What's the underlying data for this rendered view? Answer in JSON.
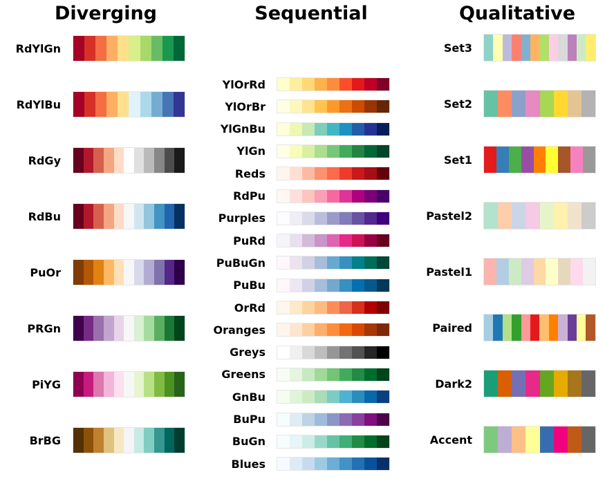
{
  "titles": {
    "diverging": "Diverging",
    "sequential": "Sequential",
    "qualitative": "Qualitative"
  },
  "diverging": [
    {
      "name": "RdYlGn",
      "colors": [
        "#a50026",
        "#d73027",
        "#f46d43",
        "#fdae61",
        "#fee08b",
        "#d9ef8b",
        "#a6d96a",
        "#66bd63",
        "#1a9850",
        "#006837"
      ]
    },
    {
      "name": "RdYlBu",
      "colors": [
        "#a50026",
        "#d73027",
        "#f46d43",
        "#fdae61",
        "#fee090",
        "#e0f3f8",
        "#abd9e9",
        "#74add1",
        "#4575b4",
        "#313695"
      ]
    },
    {
      "name": "RdGy",
      "colors": [
        "#67001f",
        "#b2182b",
        "#d6604d",
        "#f4a582",
        "#fddbc7",
        "#ffffff",
        "#e0e0e0",
        "#bababa",
        "#878787",
        "#4d4d4d",
        "#1a1a1a"
      ]
    },
    {
      "name": "RdBu",
      "colors": [
        "#67001f",
        "#b2182b",
        "#d6604d",
        "#f4a582",
        "#fddbc7",
        "#f7f7f7",
        "#d1e5f0",
        "#92c5de",
        "#4393c3",
        "#2166ac",
        "#053061"
      ]
    },
    {
      "name": "PuOr",
      "colors": [
        "#7f3b08",
        "#b35806",
        "#e08214",
        "#fdb863",
        "#fee0b6",
        "#f7f7f7",
        "#d8daeb",
        "#b2abd2",
        "#8073ac",
        "#542788",
        "#2d004b"
      ]
    },
    {
      "name": "PRGn",
      "colors": [
        "#40004b",
        "#762a83",
        "#9970ab",
        "#c2a5cf",
        "#e7d4e8",
        "#f7f7f7",
        "#d9f0d3",
        "#a6dba0",
        "#5aae61",
        "#1b7837",
        "#00441b"
      ]
    },
    {
      "name": "PiYG",
      "colors": [
        "#8e0152",
        "#c51b7d",
        "#de77ae",
        "#f1b6da",
        "#fde0ef",
        "#f7f7f7",
        "#e6f5d0",
        "#b8e186",
        "#7fbc41",
        "#4d9221",
        "#276419"
      ]
    },
    {
      "name": "BrBG",
      "colors": [
        "#543005",
        "#8c510a",
        "#bf812d",
        "#dfc27d",
        "#f6e8c3",
        "#f5f5f5",
        "#c7eae5",
        "#80cdc1",
        "#35978f",
        "#01665e",
        "#003c30"
      ]
    }
  ],
  "sequential": [
    {
      "name": "YlOrRd",
      "colors": [
        "#ffffcc",
        "#ffeda0",
        "#fed976",
        "#feb24c",
        "#fd8d3c",
        "#fc4e2a",
        "#e31a1c",
        "#bd0026",
        "#800026"
      ]
    },
    {
      "name": "YlOrBr",
      "colors": [
        "#ffffe5",
        "#fff7bc",
        "#fee391",
        "#fec44f",
        "#fe9929",
        "#ec7014",
        "#cc4c02",
        "#993404",
        "#662506"
      ]
    },
    {
      "name": "YlGnBu",
      "colors": [
        "#ffffd9",
        "#edf8b1",
        "#c7e9b4",
        "#7fcdbb",
        "#41b6c4",
        "#1d91c0",
        "#225ea8",
        "#253494",
        "#081d58"
      ]
    },
    {
      "name": "YlGn",
      "colors": [
        "#ffffe5",
        "#f7fcb9",
        "#d9f0a3",
        "#addd8e",
        "#78c679",
        "#41ab5d",
        "#238443",
        "#006837",
        "#004529"
      ]
    },
    {
      "name": "Reds",
      "colors": [
        "#fff5f0",
        "#fee0d2",
        "#fcbba1",
        "#fc9272",
        "#fb6a4a",
        "#ef3b2c",
        "#cb181d",
        "#a50f15",
        "#67000d"
      ]
    },
    {
      "name": "RdPu",
      "colors": [
        "#fff7f3",
        "#fde0dd",
        "#fcc5c0",
        "#fa9fb5",
        "#f768a1",
        "#dd3497",
        "#ae017e",
        "#7a0177",
        "#49006a"
      ]
    },
    {
      "name": "Purples",
      "colors": [
        "#fcfbfd",
        "#efedf5",
        "#dadaeb",
        "#bcbddc",
        "#9e9ac8",
        "#807dba",
        "#6a51a3",
        "#54278f",
        "#3f007d"
      ]
    },
    {
      "name": "PuRd",
      "colors": [
        "#f7f4f9",
        "#e7e1ef",
        "#d4b9da",
        "#c994c7",
        "#df65b0",
        "#e7298a",
        "#ce1256",
        "#980043",
        "#67001f"
      ]
    },
    {
      "name": "PuBuGn",
      "colors": [
        "#fff7fb",
        "#ece2f0",
        "#d0d1e6",
        "#a6bddb",
        "#67a9cf",
        "#3690c0",
        "#02818a",
        "#016c59",
        "#014636"
      ]
    },
    {
      "name": "PuBu",
      "colors": [
        "#fff7fb",
        "#ece7f2",
        "#d0d1e6",
        "#a6bddb",
        "#74a9cf",
        "#3690c0",
        "#0570b0",
        "#045a8d",
        "#023858"
      ]
    },
    {
      "name": "OrRd",
      "colors": [
        "#fff7ec",
        "#fee8c8",
        "#fdd49e",
        "#fdbb84",
        "#fc8d59",
        "#ef6548",
        "#d7301f",
        "#b30000",
        "#7f0000"
      ]
    },
    {
      "name": "Oranges",
      "colors": [
        "#fff5eb",
        "#fee6ce",
        "#fdd0a2",
        "#fdae6b",
        "#fd8d3c",
        "#f16913",
        "#d94801",
        "#a63603",
        "#7f2704"
      ]
    },
    {
      "name": "Greys",
      "colors": [
        "#ffffff",
        "#f0f0f0",
        "#d9d9d9",
        "#bdbdbd",
        "#969696",
        "#737373",
        "#525252",
        "#252525",
        "#000000"
      ]
    },
    {
      "name": "Greens",
      "colors": [
        "#f7fcf5",
        "#e5f5e0",
        "#c7e9c0",
        "#a1d99b",
        "#74c476",
        "#41ab5d",
        "#238b45",
        "#006d2c",
        "#00441b"
      ]
    },
    {
      "name": "GnBu",
      "colors": [
        "#f7fcf0",
        "#e0f3db",
        "#ccebc5",
        "#a8ddb5",
        "#7bccc4",
        "#4eb3d3",
        "#2b8cbe",
        "#0868ac",
        "#084081"
      ]
    },
    {
      "name": "BuPu",
      "colors": [
        "#f7fcfd",
        "#e0ecf4",
        "#bfd3e6",
        "#9ebcda",
        "#8c96c6",
        "#8c6bb1",
        "#88419d",
        "#810f7c",
        "#4d004b"
      ]
    },
    {
      "name": "BuGn",
      "colors": [
        "#f7fcfd",
        "#e5f5f9",
        "#ccece6",
        "#99d8c9",
        "#66c2a4",
        "#41ae76",
        "#238b45",
        "#006d2c",
        "#00441b"
      ]
    },
    {
      "name": "Blues",
      "colors": [
        "#f7fbff",
        "#deebf7",
        "#c6dbef",
        "#9ecae1",
        "#6baed6",
        "#4292c6",
        "#2171b5",
        "#08519c",
        "#08306b"
      ]
    }
  ],
  "qualitative": [
    {
      "name": "Set3",
      "colors": [
        "#8dd3c7",
        "#ffffb3",
        "#bebada",
        "#fb8072",
        "#80b1d3",
        "#fdb462",
        "#b3de69",
        "#fccde5",
        "#d9d9d9",
        "#bc80bd",
        "#ccebc5",
        "#ffed6f"
      ]
    },
    {
      "name": "Set2",
      "colors": [
        "#66c2a5",
        "#fc8d62",
        "#8da0cb",
        "#e78ac3",
        "#a6d854",
        "#ffd92f",
        "#e5c494",
        "#b3b3b3"
      ]
    },
    {
      "name": "Set1",
      "colors": [
        "#e41a1c",
        "#377eb8",
        "#4daf4a",
        "#984ea3",
        "#ff7f00",
        "#ffff33",
        "#a65628",
        "#f781bf",
        "#999999"
      ]
    },
    {
      "name": "Pastel2",
      "colors": [
        "#b3e2cd",
        "#fdcdac",
        "#cbd5e8",
        "#f4cae4",
        "#e6f5c9",
        "#fff2ae",
        "#f1e2cc",
        "#cccccc"
      ]
    },
    {
      "name": "Pastel1",
      "colors": [
        "#fbb4ae",
        "#b3cde3",
        "#ccebc5",
        "#decbe4",
        "#fed9a6",
        "#ffffcc",
        "#e5d8bd",
        "#fddaec",
        "#f2f2f2"
      ]
    },
    {
      "name": "Paired",
      "colors": [
        "#a6cee3",
        "#1f78b4",
        "#b2df8a",
        "#33a02c",
        "#fb9a99",
        "#e31a1c",
        "#fdbf6f",
        "#ff7f00",
        "#cab2d6",
        "#6a3d9a",
        "#ffff99",
        "#b15928"
      ]
    },
    {
      "name": "Dark2",
      "colors": [
        "#1b9e77",
        "#d95f02",
        "#7570b3",
        "#e7298a",
        "#66a61e",
        "#e6ab02",
        "#a6761d",
        "#666666"
      ]
    },
    {
      "name": "Accent",
      "colors": [
        "#7fc97f",
        "#beaed4",
        "#fdc086",
        "#ffff99",
        "#386cb0",
        "#f0027f",
        "#bf5b17",
        "#666666"
      ]
    }
  ]
}
